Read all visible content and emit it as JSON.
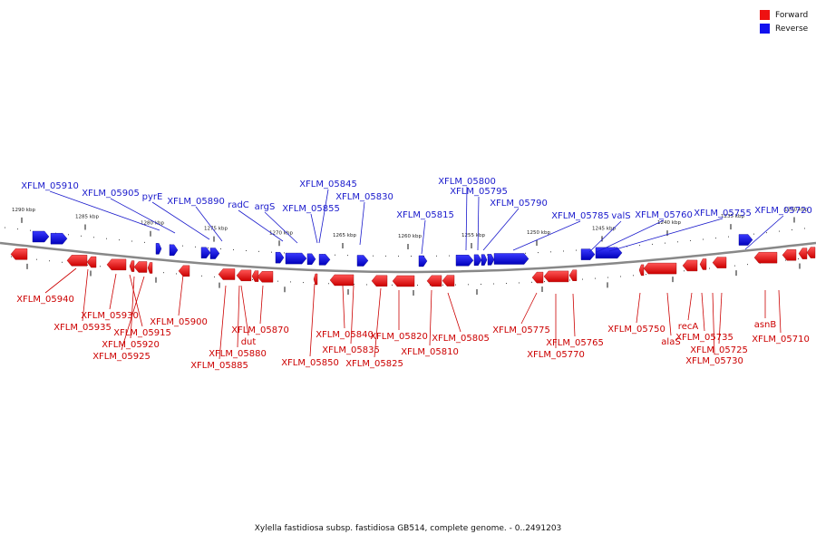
{
  "legend": [
    {
      "label": "Forward",
      "color": "#ee1111"
    },
    {
      "label": "Reverse",
      "color": "#1111ee"
    }
  ],
  "caption": "Xylella fastidiosa subsp. fastidiosa GB514, complete genome. - 0..2491203",
  "colors": {
    "forward": "#ee1111",
    "reverse": "#1111ee",
    "backbone": "#888888",
    "label_forward": "#cc0000",
    "label_reverse": "#1a1acc"
  },
  "ruler_labels": [
    "1290 kbp",
    "1285 kbp",
    "1280 kbp",
    "1275 kbp",
    "1270 kbp",
    "1265 kbp",
    "1260 kbp",
    "1255 kbp",
    "1250 kbp",
    "1245 kbp",
    "1240 kbp",
    "1235 kbp",
    "1230 kbp"
  ],
  "reverse_labels": [
    "XFLM_05910",
    "XFLM_05905",
    "pyrE",
    "XFLM_05890",
    "radC",
    "argS",
    "XFLM_05855",
    "XFLM_05845",
    "XFLM_05830",
    "XFLM_05815",
    "XFLM_05800",
    "XFLM_05795",
    "XFLM_05790",
    "XFLM_05785",
    "valS",
    "XFLM_05760",
    "XFLM_05755",
    "XFLM_05720"
  ],
  "forward_labels": [
    "XFLM_05940",
    "XFLM_05935",
    "XFLM_05930",
    "XFLM_05915",
    "XFLM_05920",
    "XFLM_05925",
    "XFLM_05900",
    "XFLM_05870",
    "dut",
    "XFLM_05880",
    "XFLM_05885",
    "XFLM_05850",
    "XFLM_05840",
    "XFLM_05835",
    "XFLM_05825",
    "XFLM_05820",
    "XFLM_05810",
    "XFLM_05805",
    "XFLM_05775",
    "XFLM_05765",
    "XFLM_05770",
    "XFLM_05750",
    "alaS",
    "recA",
    "XFLM_05735",
    "XFLM_05725",
    "XFLM_05730",
    "asnB",
    "XFLM_05710"
  ]
}
